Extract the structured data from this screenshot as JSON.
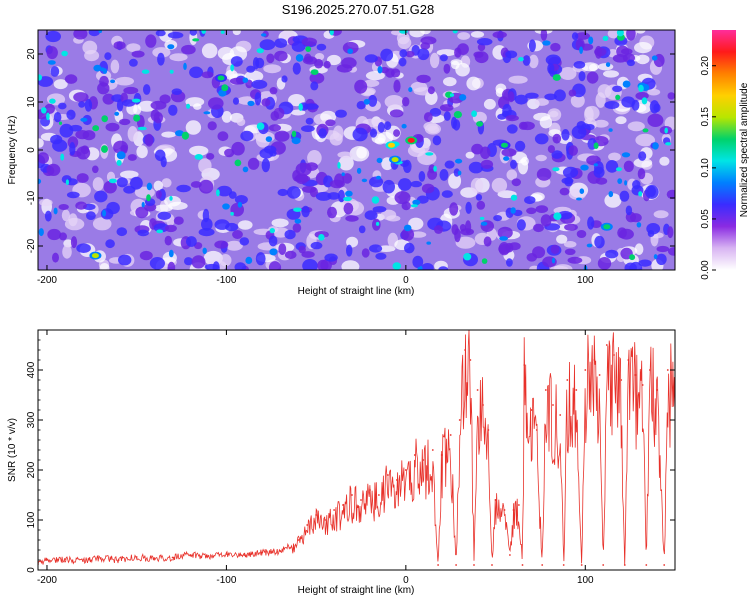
{
  "figure": {
    "title": "S196.2025.270.07.51.G28"
  },
  "chart_data": [
    {
      "type": "heatmap",
      "xlabel": "Height of straight line (km)",
      "ylabel": "Frequency (Hz)",
      "xlim": [
        -205,
        150
      ],
      "ylim": [
        -25,
        25
      ],
      "x_ticks": [
        -200,
        -100,
        0,
        100
      ],
      "y_ticks": [
        -20,
        -10,
        0,
        10,
        20
      ],
      "colorbar": {
        "label": "Normalized spectral amplitude",
        "range": [
          0,
          0.235
        ],
        "ticks": [
          "0.00",
          "0.05",
          "0.10",
          "0.15",
          "0.20"
        ],
        "colormap": [
          "#ffffff",
          "#d8b4f2",
          "#8a2be2",
          "#3a2cff",
          "#0080ff",
          "#00e5e5",
          "#00d26a",
          "#b8e600",
          "#ffd000",
          "#ff8000",
          "#ff1a1a",
          "#ff2d9b"
        ]
      },
      "field_description": "noise field, amplitude mostly 0.02-0.08 with scattered peaks ~0.12; strongest peaks (~0.22) near x=-5..5 km, y=-1..3 Hz",
      "peaks": [
        {
          "x": -8,
          "y": 1,
          "amplitude": 0.18
        },
        {
          "x": -6,
          "y": -2,
          "amplitude": 0.15
        },
        {
          "x": 3,
          "y": 2,
          "amplitude": 0.22
        },
        {
          "x": -103,
          "y": 15,
          "amplitude": 0.12
        },
        {
          "x": -173,
          "y": -22,
          "amplitude": 0.16
        },
        {
          "x": 112,
          "y": -16,
          "amplitude": 0.13
        },
        {
          "x": 55,
          "y": 1,
          "amplitude": 0.12
        }
      ]
    },
    {
      "type": "line",
      "xlabel": "Height of straight line (km)",
      "ylabel": "SNR (10 * v/v)",
      "xlim": [
        -205,
        150
      ],
      "ylim": [
        0,
        480
      ],
      "x_ticks": [
        -200,
        -100,
        0,
        100
      ],
      "y_ticks": [
        0,
        100,
        200,
        300,
        400
      ],
      "series": [
        {
          "color": "#e8312a",
          "points": [
            [
              -205,
              12
            ],
            [
              -200,
              20
            ],
            [
              -190,
              22
            ],
            [
              -180,
              18
            ],
            [
              -170,
              24
            ],
            [
              -160,
              20
            ],
            [
              -150,
              26
            ],
            [
              -140,
              22
            ],
            [
              -130,
              25
            ],
            [
              -120,
              30
            ],
            [
              -110,
              28
            ],
            [
              -100,
              32
            ],
            [
              -90,
              30
            ],
            [
              -80,
              35
            ],
            [
              -70,
              38
            ],
            [
              -60,
              60
            ],
            [
              -55,
              90
            ],
            [
              -50,
              110
            ],
            [
              -45,
              100
            ],
            [
              -40,
              120
            ],
            [
              -35,
              130
            ],
            [
              -30,
              150
            ],
            [
              -25,
              140
            ],
            [
              -20,
              160
            ],
            [
              -15,
              150
            ],
            [
              -10,
              190
            ],
            [
              -5,
              180
            ],
            [
              0,
              200
            ],
            [
              5,
              230
            ],
            [
              10,
              220
            ],
            [
              15,
              240
            ],
            [
              18,
              10
            ],
            [
              20,
              230
            ],
            [
              25,
              270
            ],
            [
              28,
              10
            ],
            [
              30,
              300
            ],
            [
              33,
              440
            ],
            [
              36,
              420
            ],
            [
              38,
              10
            ],
            [
              40,
              360
            ],
            [
              43,
              330
            ],
            [
              46,
              280
            ],
            [
              48,
              10
            ],
            [
              50,
              140
            ],
            [
              55,
              120
            ],
            [
              58,
              30
            ],
            [
              60,
              120
            ],
            [
              63,
              130
            ],
            [
              65,
              10
            ],
            [
              66,
              410
            ],
            [
              70,
              320
            ],
            [
              73,
              280
            ],
            [
              76,
              10
            ],
            [
              78,
              360
            ],
            [
              82,
              330
            ],
            [
              86,
              310
            ],
            [
              88,
              10
            ],
            [
              90,
              380
            ],
            [
              95,
              360
            ],
            [
              98,
              10
            ],
            [
              100,
              400
            ],
            [
              105,
              420
            ],
            [
              108,
              390
            ],
            [
              110,
              10
            ],
            [
              112,
              450
            ],
            [
              116,
              430
            ],
            [
              120,
              380
            ],
            [
              122,
              10
            ],
            [
              124,
              420
            ],
            [
              128,
              390
            ],
            [
              132,
              370
            ],
            [
              134,
              10
            ],
            [
              136,
              400
            ],
            [
              140,
              360
            ],
            [
              144,
              10
            ],
            [
              146,
              400
            ],
            [
              150,
              380
            ]
          ]
        }
      ]
    }
  ]
}
